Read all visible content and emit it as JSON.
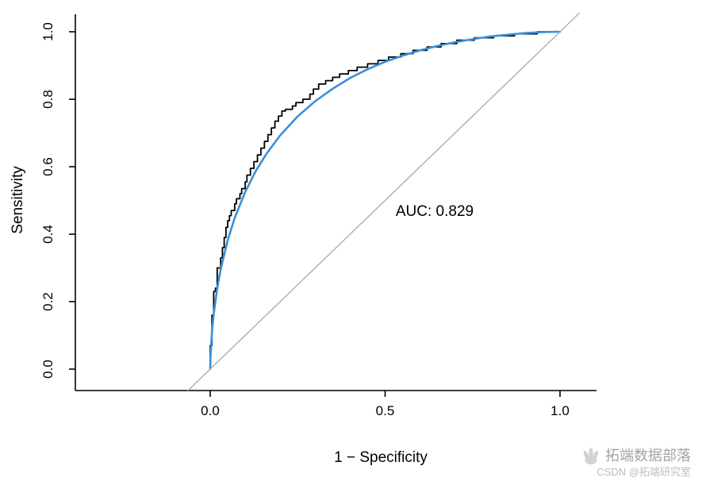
{
  "chart_data": {
    "type": "line",
    "title": "",
    "xlabel": "1 − Specificity",
    "ylabel": "Sensitivity",
    "xlim": [
      0,
      1
    ],
    "ylim": [
      0,
      1
    ],
    "grid": false,
    "legend": "none",
    "x_ticks": {
      "values": [
        0,
        0.5,
        1
      ],
      "labels": [
        "0.0",
        "0.5",
        "1.0"
      ]
    },
    "y_ticks": {
      "values": [
        0,
        0.2,
        0.4,
        0.6,
        0.8,
        1.0
      ],
      "labels": [
        "0.0",
        "0.2",
        "0.4",
        "0.6",
        "0.8",
        "1.0"
      ]
    },
    "annotation": {
      "text": "AUC: 0.829",
      "x": 0.64,
      "y": 0.455
    },
    "auc": 0.829,
    "series": [
      {
        "name": "empirical-roc",
        "style": "step",
        "color": "#000000",
        "width": 1.8,
        "x": [
          0.0,
          0.0,
          0.005,
          0.005,
          0.01,
          0.01,
          0.015,
          0.02,
          0.02,
          0.03,
          0.035,
          0.04,
          0.045,
          0.05,
          0.055,
          0.06,
          0.07,
          0.075,
          0.085,
          0.09,
          0.1,
          0.105,
          0.115,
          0.125,
          0.135,
          0.145,
          0.155,
          0.165,
          0.175,
          0.185,
          0.195,
          0.205,
          0.215,
          0.235,
          0.245,
          0.265,
          0.285,
          0.295,
          0.31,
          0.33,
          0.35,
          0.37,
          0.395,
          0.42,
          0.45,
          0.48,
          0.51,
          0.545,
          0.58,
          0.62,
          0.66,
          0.705,
          0.755,
          0.81,
          0.87,
          0.935,
          1.0
        ],
        "y": [
          0.0,
          0.04,
          0.07,
          0.12,
          0.16,
          0.2,
          0.23,
          0.24,
          0.28,
          0.3,
          0.33,
          0.36,
          0.39,
          0.42,
          0.44,
          0.455,
          0.47,
          0.49,
          0.505,
          0.52,
          0.535,
          0.555,
          0.575,
          0.595,
          0.615,
          0.635,
          0.655,
          0.675,
          0.695,
          0.715,
          0.735,
          0.75,
          0.765,
          0.77,
          0.78,
          0.79,
          0.8,
          0.815,
          0.83,
          0.845,
          0.855,
          0.865,
          0.875,
          0.885,
          0.895,
          0.905,
          0.915,
          0.925,
          0.935,
          0.945,
          0.955,
          0.965,
          0.975,
          0.982,
          0.988,
          0.994,
          1.0
        ]
      },
      {
        "name": "smooth-roc",
        "style": "line",
        "color": "#3a8fd9",
        "width": 2.6,
        "x": [
          0.0,
          0.001,
          0.005,
          0.01,
          0.02,
          0.03,
          0.05,
          0.07,
          0.1,
          0.13,
          0.16,
          0.2,
          0.25,
          0.3,
          0.35,
          0.4,
          0.45,
          0.5,
          0.55,
          0.6,
          0.65,
          0.7,
          0.75,
          0.8,
          0.85,
          0.9,
          0.95,
          1.0
        ],
        "y": [
          0.0,
          0.04,
          0.11,
          0.163,
          0.239,
          0.296,
          0.382,
          0.448,
          0.525,
          0.587,
          0.637,
          0.693,
          0.749,
          0.794,
          0.831,
          0.863,
          0.889,
          0.911,
          0.929,
          0.945,
          0.958,
          0.969,
          0.978,
          0.986,
          0.991,
          0.996,
          0.999,
          1.0
        ]
      },
      {
        "name": "chance-diagonal",
        "style": "line",
        "color": "#b3b3b3",
        "width": 1.5,
        "x": [
          -0.065,
          1.055
        ],
        "y": [
          -0.065,
          1.055
        ]
      }
    ]
  },
  "watermark": {
    "logo_icon": "hand-logo-icon",
    "brand": "拓端数据部落",
    "credit": "CSDN @拓端研究室"
  }
}
